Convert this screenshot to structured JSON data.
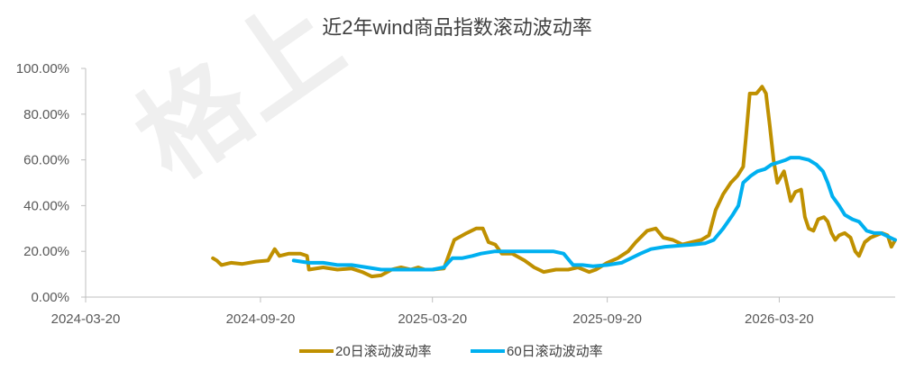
{
  "watermark": "格上",
  "chart_data": {
    "type": "line",
    "title": "近2年wind商品指数滚动波动率",
    "xlabel": "",
    "ylabel": "",
    "x_ticks": [
      "2024-03-20",
      "2024-09-20",
      "2025-03-20",
      "2025-09-20",
      "2026-03-20"
    ],
    "y_ticks": [
      "0.00%",
      "20.00%",
      "40.00%",
      "60.00%",
      "80.00%",
      "100.00%"
    ],
    "ylim": [
      0,
      100
    ],
    "xlim": [
      "2024-03-20",
      "2026-07-20"
    ],
    "grid": false,
    "legend_position": "bottom",
    "series": [
      {
        "name": "20日滚动波动率",
        "color": "#BF9000",
        "points": [
          [
            "2024-08-01",
            17
          ],
          [
            "2024-08-05",
            16
          ],
          [
            "2024-08-10",
            14
          ],
          [
            "2024-08-20",
            15
          ],
          [
            "2024-09-01",
            14.5
          ],
          [
            "2024-09-15",
            15.5
          ],
          [
            "2024-09-28",
            16
          ],
          [
            "2024-10-05",
            21
          ],
          [
            "2024-10-10",
            18
          ],
          [
            "2024-10-20",
            19
          ],
          [
            "2024-11-01",
            19
          ],
          [
            "2024-11-08",
            18
          ],
          [
            "2024-11-10",
            12
          ],
          [
            "2024-11-25",
            13
          ],
          [
            "2024-12-10",
            12
          ],
          [
            "2024-12-25",
            12.5
          ],
          [
            "2025-01-05",
            11
          ],
          [
            "2025-01-15",
            9
          ],
          [
            "2025-01-25",
            9.5
          ],
          [
            "2025-02-05",
            12
          ],
          [
            "2025-02-15",
            13
          ],
          [
            "2025-02-25",
            12
          ],
          [
            "2025-03-05",
            13
          ],
          [
            "2025-03-12",
            12
          ],
          [
            "2025-03-20",
            12
          ],
          [
            "2025-04-01",
            12.5
          ],
          [
            "2025-04-05",
            17
          ],
          [
            "2025-04-12",
            25
          ],
          [
            "2025-04-25",
            28
          ],
          [
            "2025-05-05",
            30
          ],
          [
            "2025-05-12",
            30
          ],
          [
            "2025-05-18",
            24
          ],
          [
            "2025-05-25",
            23
          ],
          [
            "2025-06-01",
            19
          ],
          [
            "2025-06-12",
            19
          ],
          [
            "2025-06-25",
            16
          ],
          [
            "2025-07-05",
            13
          ],
          [
            "2025-07-15",
            11
          ],
          [
            "2025-07-28",
            12
          ],
          [
            "2025-08-10",
            12
          ],
          [
            "2025-08-20",
            13
          ],
          [
            "2025-09-01",
            11
          ],
          [
            "2025-09-08",
            12
          ],
          [
            "2025-09-20",
            15
          ],
          [
            "2025-10-01",
            17
          ],
          [
            "2025-10-12",
            20
          ],
          [
            "2025-10-20",
            24
          ],
          [
            "2025-11-01",
            29
          ],
          [
            "2025-11-10",
            30
          ],
          [
            "2025-11-18",
            26
          ],
          [
            "2025-11-28",
            25
          ],
          [
            "2025-12-08",
            23
          ],
          [
            "2025-12-18",
            24
          ],
          [
            "2025-12-28",
            25
          ],
          [
            "2026-01-05",
            27
          ],
          [
            "2026-01-12",
            38
          ],
          [
            "2026-01-20",
            45
          ],
          [
            "2026-01-28",
            50
          ],
          [
            "2026-02-04",
            53
          ],
          [
            "2026-02-10",
            57
          ],
          [
            "2026-02-13",
            70
          ],
          [
            "2026-02-17",
            89
          ],
          [
            "2026-02-24",
            89
          ],
          [
            "2026-03-02",
            92
          ],
          [
            "2026-03-06",
            89
          ],
          [
            "2026-03-10",
            75
          ],
          [
            "2026-03-14",
            60
          ],
          [
            "2026-03-18",
            50
          ],
          [
            "2026-03-25",
            55
          ],
          [
            "2026-04-01",
            42
          ],
          [
            "2026-04-06",
            46
          ],
          [
            "2026-04-12",
            47
          ],
          [
            "2026-04-16",
            35
          ],
          [
            "2026-04-20",
            30
          ],
          [
            "2026-04-25",
            29
          ],
          [
            "2026-04-30",
            34
          ],
          [
            "2026-05-06",
            35
          ],
          [
            "2026-05-10",
            33
          ],
          [
            "2026-05-14",
            28
          ],
          [
            "2026-05-18",
            25
          ],
          [
            "2026-05-22",
            27
          ],
          [
            "2026-05-28",
            28
          ],
          [
            "2026-06-03",
            26
          ],
          [
            "2026-06-08",
            20
          ],
          [
            "2026-06-12",
            18
          ],
          [
            "2026-06-18",
            24
          ],
          [
            "2026-06-24",
            26
          ],
          [
            "2026-06-30",
            27
          ],
          [
            "2026-07-06",
            28
          ],
          [
            "2026-07-12",
            27
          ],
          [
            "2026-07-16",
            22
          ],
          [
            "2026-07-20",
            25
          ]
        ]
      },
      {
        "name": "60日滚动波动率",
        "color": "#00B0F0",
        "points": [
          [
            "2024-10-25",
            16
          ],
          [
            "2024-11-10",
            15
          ],
          [
            "2024-11-25",
            15
          ],
          [
            "2024-12-10",
            14
          ],
          [
            "2024-12-25",
            14
          ],
          [
            "2025-01-10",
            13
          ],
          [
            "2025-01-25",
            12
          ],
          [
            "2025-02-10",
            12
          ],
          [
            "2025-02-25",
            12
          ],
          [
            "2025-03-20",
            12
          ],
          [
            "2025-04-01",
            13
          ],
          [
            "2025-04-10",
            17
          ],
          [
            "2025-04-20",
            17
          ],
          [
            "2025-05-01",
            18
          ],
          [
            "2025-05-10",
            19
          ],
          [
            "2025-05-25",
            20
          ],
          [
            "2025-06-10",
            20
          ],
          [
            "2025-06-25",
            20
          ],
          [
            "2025-07-10",
            20
          ],
          [
            "2025-07-25",
            20
          ],
          [
            "2025-08-05",
            19
          ],
          [
            "2025-08-15",
            14
          ],
          [
            "2025-08-25",
            14
          ],
          [
            "2025-09-05",
            13.5
          ],
          [
            "2025-09-20",
            14
          ],
          [
            "2025-10-05",
            15
          ],
          [
            "2025-10-15",
            17
          ],
          [
            "2025-10-25",
            19
          ],
          [
            "2025-11-05",
            21
          ],
          [
            "2025-11-20",
            22
          ],
          [
            "2025-12-05",
            22.5
          ],
          [
            "2025-12-20",
            23
          ],
          [
            "2026-01-01",
            23.5
          ],
          [
            "2026-01-10",
            25
          ],
          [
            "2026-01-20",
            30
          ],
          [
            "2026-01-30",
            36
          ],
          [
            "2026-02-05",
            40
          ],
          [
            "2026-02-10",
            50
          ],
          [
            "2026-02-18",
            53
          ],
          [
            "2026-02-25",
            55
          ],
          [
            "2026-03-05",
            56
          ],
          [
            "2026-03-12",
            58
          ],
          [
            "2026-03-20",
            59
          ],
          [
            "2026-03-27",
            60
          ],
          [
            "2026-04-01",
            61
          ],
          [
            "2026-04-10",
            61
          ],
          [
            "2026-04-20",
            60
          ],
          [
            "2026-04-28",
            58
          ],
          [
            "2026-05-05",
            55
          ],
          [
            "2026-05-10",
            50
          ],
          [
            "2026-05-15",
            44
          ],
          [
            "2026-05-22",
            40
          ],
          [
            "2026-05-28",
            36
          ],
          [
            "2026-06-05",
            34
          ],
          [
            "2026-06-12",
            33
          ],
          [
            "2026-06-20",
            29
          ],
          [
            "2026-06-28",
            28
          ],
          [
            "2026-07-05",
            28
          ],
          [
            "2026-07-10",
            27
          ],
          [
            "2026-07-15",
            26
          ],
          [
            "2026-07-20",
            25
          ]
        ]
      }
    ]
  }
}
